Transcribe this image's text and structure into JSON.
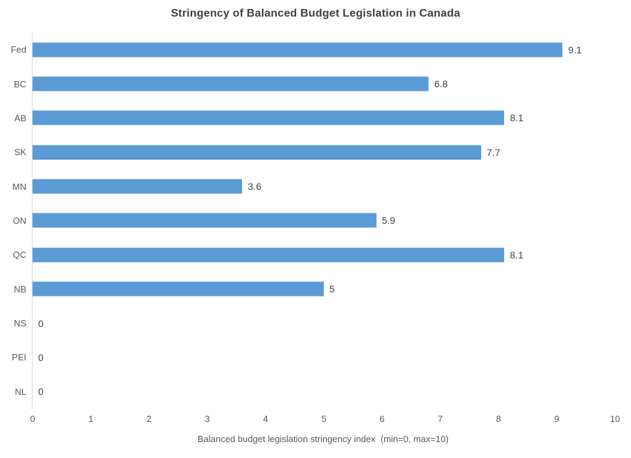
{
  "chart_data": {
    "type": "bar",
    "orientation": "horizontal",
    "title": "Stringency of Balanced Budget Legislation in Canada",
    "categories": [
      "Fed",
      "BC",
      "AB",
      "SK",
      "MN",
      "ON",
      "QC",
      "NB",
      "NS",
      "PEI",
      "NL"
    ],
    "values": [
      9.1,
      6.8,
      8.1,
      7.7,
      3.6,
      5.9,
      8.1,
      5,
      0,
      0,
      0
    ],
    "value_labels": [
      "9.1",
      "6.8",
      "8.1",
      "7.7",
      "3.6",
      "5.9",
      "8.1",
      "5",
      "0",
      "0",
      "0"
    ],
    "xlabel": "Balanced budget legislation stringency index  (min=0, max=10)",
    "ylabel": "",
    "xlim": [
      0,
      10
    ],
    "x_ticks": [
      "0",
      "1",
      "2",
      "3",
      "4",
      "5",
      "6",
      "7",
      "8",
      "9",
      "10"
    ],
    "grid": false,
    "legend": false,
    "bar_color": "#5B9BD5",
    "colors": {
      "title": "#3F3F3F",
      "axis_text": "#595959",
      "value_label": "#404040",
      "axis_line": "#D9D9D9",
      "background": "#FFFFFF"
    }
  }
}
